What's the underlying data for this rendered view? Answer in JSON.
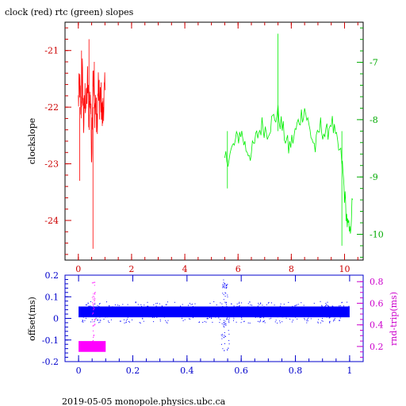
{
  "chart_data": [
    {
      "type": "line",
      "title": "clock (red) rtc (green) slopes",
      "ylabel": "clockslope",
      "xlim": [
        -0.5,
        10.7
      ],
      "ylim_left": [
        -24.7,
        -20.5
      ],
      "ylim_right": [
        -10.45,
        -6.3
      ],
      "x_ticks": [
        "0",
        "2",
        "4",
        "6",
        "8",
        "10"
      ],
      "y_left_ticks": [
        "-21",
        "-22",
        "-23",
        "-24"
      ],
      "y_right_ticks": [
        "-7",
        "-8",
        "-9",
        "-10"
      ],
      "colors": {
        "left_axis": "#cc0000",
        "right_axis": "#00aa00",
        "x_axis": "#cc0000"
      },
      "series": [
        {
          "name": "clock",
          "axis": "left",
          "color": "#ff0000",
          "x": [
            0.0,
            0.05,
            0.1,
            0.15,
            0.2,
            0.25,
            0.3,
            0.35,
            0.4,
            0.45,
            0.5,
            0.55,
            0.6,
            0.65,
            0.7,
            0.75,
            0.8,
            0.85,
            0.9,
            0.95,
            1.0
          ],
          "y": [
            -21.9,
            -21.6,
            -22.1,
            -21.4,
            -22.3,
            -21.8,
            -22.0,
            -21.5,
            -22.2,
            -21.7,
            -22.8,
            -21.3,
            -22.1,
            -21.9,
            -22.4,
            -21.6,
            -22.0,
            -21.8,
            -22.2,
            -21.9,
            -21.7
          ]
        },
        {
          "name": "rtc",
          "axis": "right",
          "color": "#00ee00",
          "x": [
            5.5,
            5.7,
            5.9,
            6.1,
            6.3,
            6.5,
            6.7,
            6.9,
            7.1,
            7.3,
            7.5,
            7.7,
            7.9,
            8.1,
            8.3,
            8.5,
            8.7,
            8.9,
            9.1,
            9.3,
            9.5,
            9.7,
            9.9,
            10.0,
            10.1,
            10.2,
            10.3
          ],
          "y": [
            -8.7,
            -8.6,
            -8.4,
            -8.2,
            -8.5,
            -8.6,
            -8.3,
            -8.1,
            -8.2,
            -8.0,
            -7.9,
            -8.2,
            -8.5,
            -8.3,
            -8.0,
            -7.8,
            -8.2,
            -8.5,
            -8.1,
            -8.3,
            -8.0,
            -8.4,
            -8.7,
            -9.3,
            -9.8,
            -10.0,
            -9.4
          ]
        }
      ]
    },
    {
      "type": "scatter",
      "ylabel": "offset(ms)",
      "y2label": "rnd-trip(ms)",
      "xlim": [
        -0.05,
        1.05
      ],
      "ylim_left": [
        -0.2,
        0.2
      ],
      "ylim_right": [
        0.06,
        0.86
      ],
      "x_ticks": [
        "0",
        "0.2",
        "0.4",
        "0.6",
        "0.8",
        "1"
      ],
      "y_left_ticks": [
        "0.2",
        "0.1",
        "0",
        "-0.1",
        "-0.2"
      ],
      "y_right_ticks": [
        "0.8",
        "0.6",
        "0.4",
        "0.2"
      ],
      "colors": {
        "left_axis": "#0000cc",
        "right_axis": "#cc00cc",
        "x_axis": "#0000cc"
      },
      "series": [
        {
          "name": "offset",
          "axis": "left",
          "color": "#0000ff",
          "x_range": [
            0.0,
            1.0
          ],
          "center": 0.03,
          "spread": 0.025,
          "dip": {
            "x": 0.54,
            "min": -0.15
          }
        },
        {
          "name": "rnd-trip",
          "axis": "right",
          "color": "#ff00ff",
          "x_range": [
            0.0,
            0.1
          ],
          "band": [
            0.15,
            0.25
          ],
          "spike": {
            "x": 0.055,
            "max": 0.8
          }
        }
      ]
    }
  ],
  "footer": "2019-05-05 monopole.physics.ubc.ca"
}
